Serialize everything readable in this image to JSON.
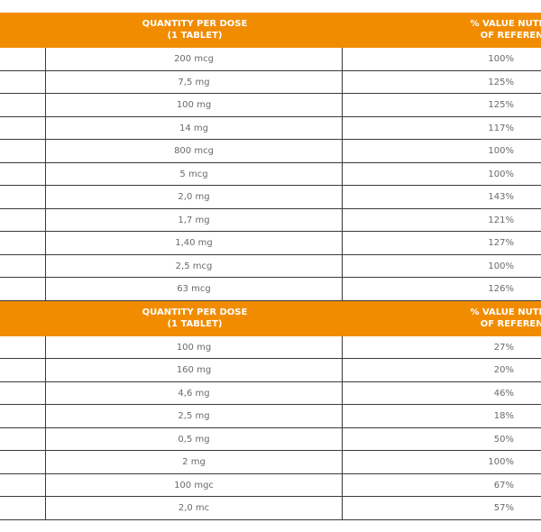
{
  "table1": {
    "header": {
      "qty_line1": "QUANTITY PER DOSE",
      "qty_line2": "(1 TABLET)",
      "pct_line1": "% VALUE NUTRITIO",
      "pct_line2": "OF REFERENCE"
    },
    "rows": [
      {
        "qty": "200 mcg",
        "pct": "100%"
      },
      {
        "qty": "7,5 mg",
        "pct": "125%"
      },
      {
        "qty": "100 mg",
        "pct": "125%"
      },
      {
        "qty": "14 mg",
        "pct": "117%"
      },
      {
        "qty": "800 mcg",
        "pct": "100%"
      },
      {
        "qty": "5 mcg",
        "pct": "100%"
      },
      {
        "qty": "2,0 mg",
        "pct": "143%"
      },
      {
        "qty": "1,7 mg",
        "pct": "121%"
      },
      {
        "qty": "1,40 mg",
        "pct": "127%"
      },
      {
        "qty": "2,5 mcg",
        "pct": "100%"
      },
      {
        "qty": "63 mcg",
        "pct": "126%"
      }
    ]
  },
  "table2": {
    "header": {
      "qty_line1": "QUANTITY PER DOSE",
      "qty_line2": "(1 TABLET)",
      "pct_line1": "% VALUE NUTRITIO",
      "pct_line2": "OF REFERENCE"
    },
    "rows": [
      {
        "qty": "100 mg",
        "pct": "27%"
      },
      {
        "qty": "160 mg",
        "pct": "20%"
      },
      {
        "qty": "4,6 mg",
        "pct": "46%"
      },
      {
        "qty": "2,5 mg",
        "pct": "18%"
      },
      {
        "qty": "0,5 mg",
        "pct": "50%"
      },
      {
        "qty": "2 mg",
        "pct": "100%"
      },
      {
        "qty": "100 mgc",
        "pct": "67%"
      },
      {
        "qty": "2,0 mc",
        "pct": "57%"
      }
    ]
  },
  "colors": {
    "header_bg": "#f18c00",
    "header_text": "#ffffff",
    "border": "#3a3a3a",
    "cell_text": "#6a6a6a"
  }
}
